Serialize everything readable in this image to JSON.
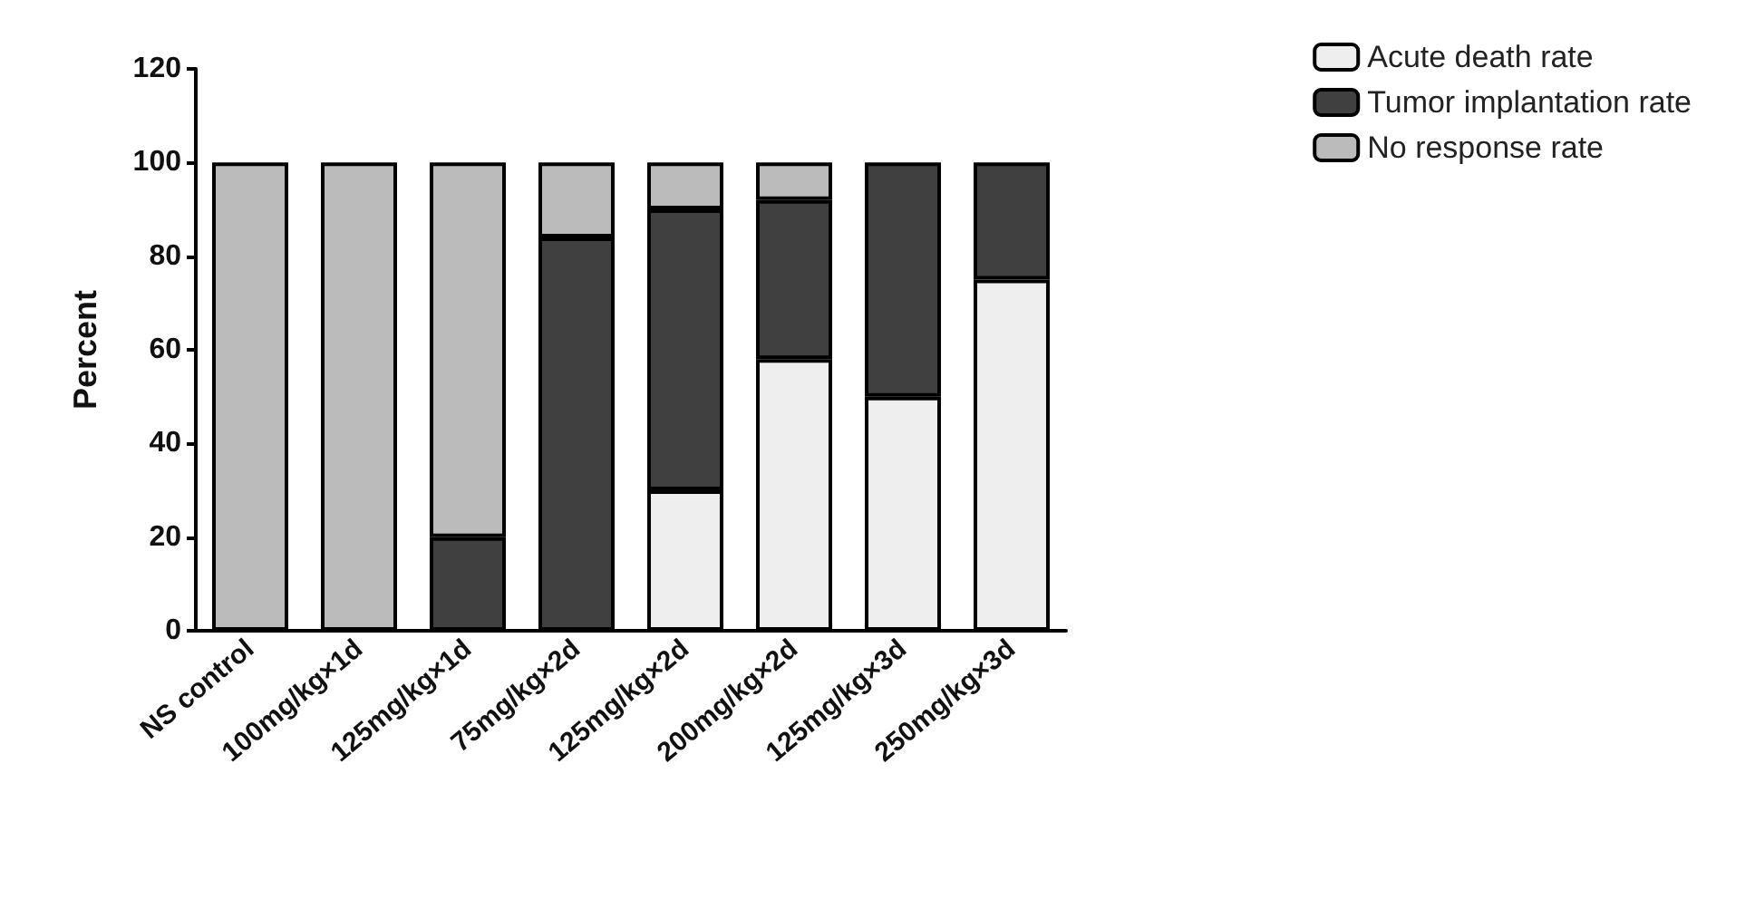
{
  "chart_data": {
    "type": "bar",
    "stacked": true,
    "ylabel": "Percent",
    "categories": [
      "NS control",
      "100mg/kg×1d",
      "125mg/kg×1d",
      "75mg/kg×2d",
      "125mg/kg×2d",
      "200mg/kg×2d",
      "125mg/kg×3d",
      "250mg/kg×3d"
    ],
    "series": [
      {
        "name": "Acute death rate",
        "color": "#eeeeee",
        "values": [
          0,
          0,
          0,
          0,
          30,
          58,
          50,
          75
        ]
      },
      {
        "name": "Tumor implantation rate",
        "color": "#404040",
        "values": [
          0,
          0,
          20,
          84,
          60,
          34,
          50,
          25
        ]
      },
      {
        "name": "No response rate",
        "color": "#bbbbbb",
        "values": [
          100,
          100,
          80,
          16,
          10,
          8,
          0,
          0
        ]
      }
    ],
    "ylim": [
      0,
      120
    ],
    "yticks": [
      0,
      20,
      40,
      60,
      80,
      100,
      120
    ],
    "grid": false,
    "legend": "top right"
  }
}
